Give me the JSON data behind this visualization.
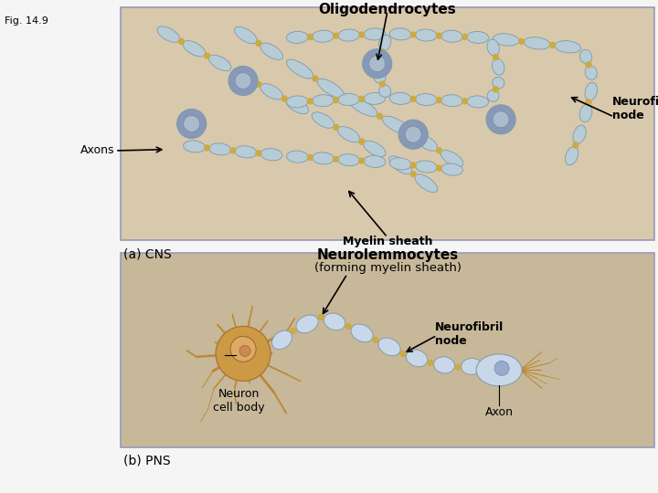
{
  "fig_label": "Fig. 14.9",
  "panel_a_label": "(a) CNS",
  "panel_b_label": "(b) PNS",
  "panel_a_title": "Oligodendrocytes",
  "panel_b_title_line1": "Neurolemmocytes",
  "panel_b_title_line2": "(forming myelin sheath)",
  "ann_a_neurofibril": "Neurofibril\nnode",
  "ann_a_axons": "Axons",
  "ann_a_myelin": "Myelin sheath",
  "ann_b_neurofibril": "Neurofibril\nnode",
  "ann_b_neuron": "Neuron\ncell body",
  "ann_b_axon": "Axon",
  "fig_fontsize": 8,
  "title_fontsize": 11,
  "ann_fontsize": 9,
  "panel_label_fontsize": 10,
  "panel_a_bg": "#d4c4a8",
  "panel_b_bg": "#c8b898",
  "panel_border": "#aaaacc",
  "white": "#ffffff",
  "axon_col": "#b8ccd8",
  "axon_edge": "#7a9aaa",
  "node_col": "#ccaa44",
  "oligo_body": "#8899b8",
  "oligo_nucleus": "#aabbcc",
  "neuron_body": "#cc9944",
  "neuron_nucleus": "#ddaa66",
  "dendrite_col": "#bb8833",
  "myelin_col": "#c8d8e8",
  "myelin_edge": "#8899aa"
}
